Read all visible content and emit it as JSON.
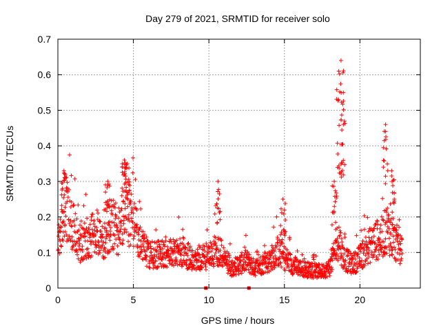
{
  "chart_data": {
    "type": "scatter",
    "title": "Day 279 of 2021, SRMTID for receiver solo",
    "xlabel": "GPS time / hours",
    "ylabel": "SRMTID / TECUs",
    "xlim": [
      0,
      24
    ],
    "ylim": [
      0,
      0.7
    ],
    "xticks": [
      0,
      5,
      10,
      15,
      20
    ],
    "yticks": [
      0,
      0.1,
      0.2,
      0.3,
      0.4,
      0.5,
      0.6,
      0.7
    ],
    "xtick_labels": [
      "0",
      "5",
      "10",
      "15",
      "20"
    ],
    "ytick_labels": [
      "0",
      "0.1",
      "0.2",
      "0.3",
      "0.4",
      "0.5",
      "0.6",
      "0.7"
    ],
    "grid": true,
    "marker": "+",
    "series_color": "#ff0000",
    "envelope": {
      "description": "approximate typical SRMTID level vs time (hours, TECU)",
      "x": [
        0,
        0.3,
        0.5,
        1,
        1.5,
        2,
        2.5,
        3,
        3.5,
        4,
        4.5,
        5,
        5.5,
        6,
        7,
        8,
        9,
        10,
        10.5,
        11,
        11.5,
        12,
        12.5,
        13,
        13.5,
        14,
        14.5,
        15,
        15.5,
        16,
        16.5,
        17,
        17.5,
        18,
        18.3,
        18.6,
        18.9,
        19.2,
        19.5,
        20,
        20.5,
        21,
        21.5,
        21.8,
        22.2,
        22.8
      ],
      "y": [
        0.12,
        0.2,
        0.25,
        0.18,
        0.13,
        0.15,
        0.17,
        0.14,
        0.19,
        0.17,
        0.22,
        0.2,
        0.13,
        0.1,
        0.1,
        0.11,
        0.09,
        0.09,
        0.12,
        0.09,
        0.06,
        0.07,
        0.08,
        0.06,
        0.07,
        0.08,
        0.11,
        0.09,
        0.07,
        0.06,
        0.055,
        0.05,
        0.05,
        0.06,
        0.1,
        0.15,
        0.09,
        0.08,
        0.07,
        0.09,
        0.12,
        0.14,
        0.15,
        0.18,
        0.14,
        0.12
      ]
    },
    "peaks": [
      {
        "x": 0.4,
        "y": 0.33
      },
      {
        "x": 3.3,
        "y": 0.3
      },
      {
        "x": 4.4,
        "y": 0.36
      },
      {
        "x": 4.6,
        "y": 0.35
      },
      {
        "x": 10.6,
        "y": 0.3
      },
      {
        "x": 14.9,
        "y": 0.25
      },
      {
        "x": 18.3,
        "y": 0.3
      },
      {
        "x": 18.6,
        "y": 0.61
      },
      {
        "x": 18.75,
        "y": 0.64
      },
      {
        "x": 18.9,
        "y": 0.55
      },
      {
        "x": 21.7,
        "y": 0.46
      },
      {
        "x": 22.1,
        "y": 0.33
      }
    ],
    "gap_markers": [
      9.8,
      12.65
    ]
  }
}
